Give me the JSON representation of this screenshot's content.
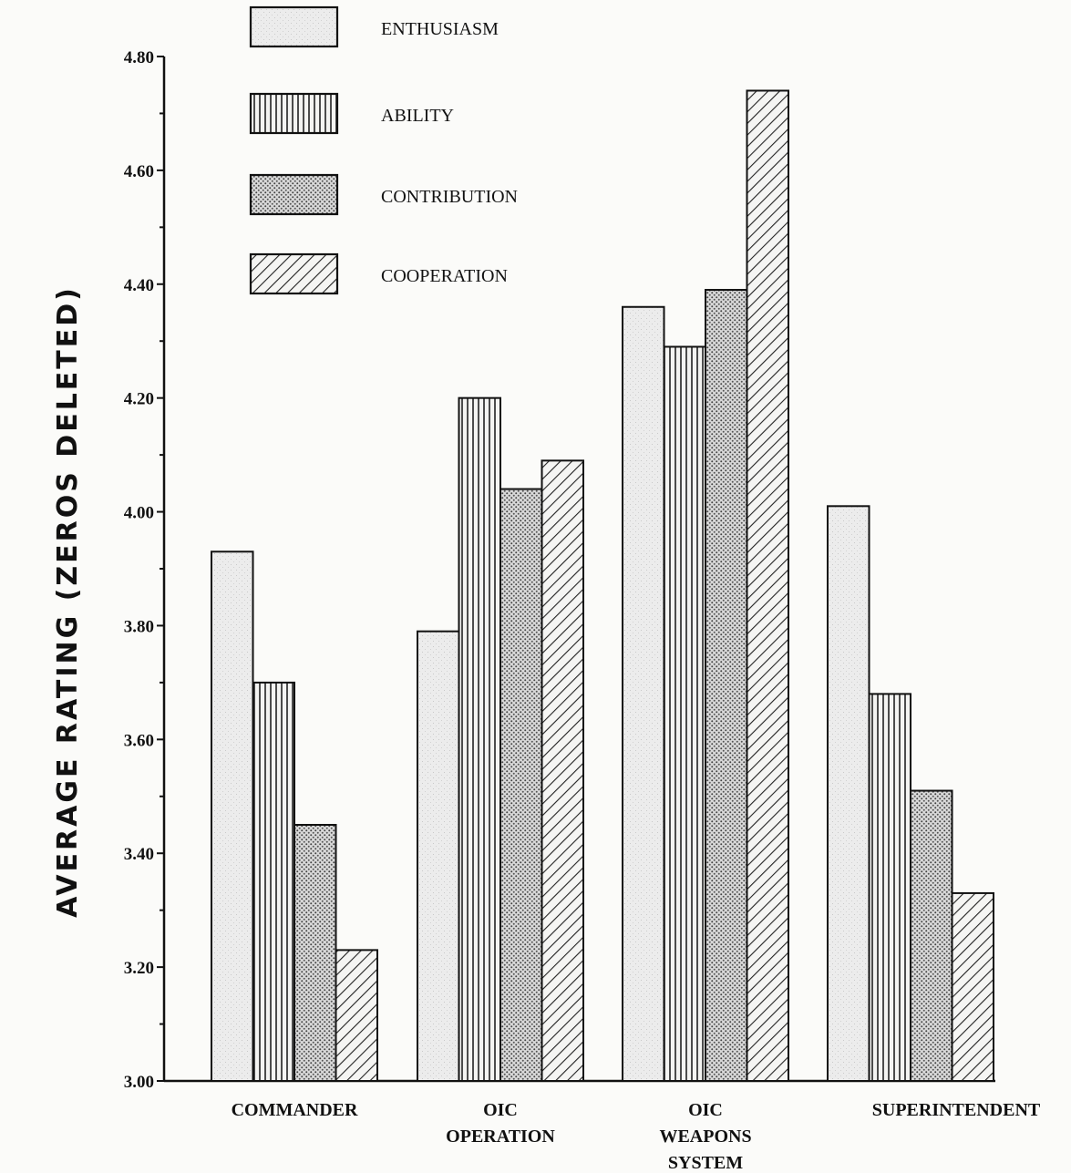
{
  "chart_data": {
    "type": "bar",
    "title": "",
    "xlabel": "",
    "ylabel": "AVERAGE  RATING   (ZEROS DELETED)",
    "ylim": [
      3.0,
      4.8
    ],
    "yticks": [
      "3.00",
      "3.20",
      "3.40",
      "3.60",
      "3.80",
      "4.00",
      "4.20",
      "4.40",
      "4.60",
      "4.80"
    ],
    "categories": [
      [
        "COMMANDER"
      ],
      [
        "OIC",
        "OPERATION"
      ],
      [
        "OIC",
        "WEAPONS",
        "SYSTEM"
      ],
      [
        "SUPERINTENDENT"
      ]
    ],
    "series": [
      {
        "name": "ENTHUSIASM",
        "pattern": "stipple",
        "values": [
          3.93,
          3.79,
          4.36,
          4.01
        ]
      },
      {
        "name": "ABILITY",
        "pattern": "vertical-lines",
        "values": [
          3.7,
          4.2,
          4.29,
          3.68
        ]
      },
      {
        "name": "CONTRIBUTION",
        "pattern": "dots",
        "values": [
          3.45,
          4.04,
          4.39,
          3.51
        ]
      },
      {
        "name": "COOPERATION",
        "pattern": "diagonal-lines",
        "values": [
          3.23,
          4.09,
          4.74,
          3.33
        ]
      }
    ],
    "legend_position": "top-left-inside",
    "grid": false
  }
}
